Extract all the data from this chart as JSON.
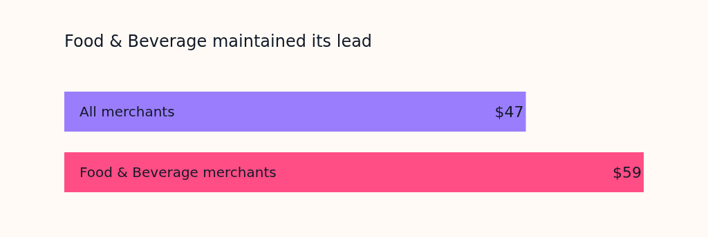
{
  "chart_data": {
    "type": "bar",
    "orientation": "horizontal",
    "title": "Food & Beverage maintained its lead",
    "categories": [
      "All merchants",
      "Food & Beverage merchants"
    ],
    "values": [
      47,
      59
    ],
    "colors": [
      "#9a7dfc",
      "#ff4d85"
    ],
    "value_labels": [
      "$47",
      "$59"
    ]
  }
}
